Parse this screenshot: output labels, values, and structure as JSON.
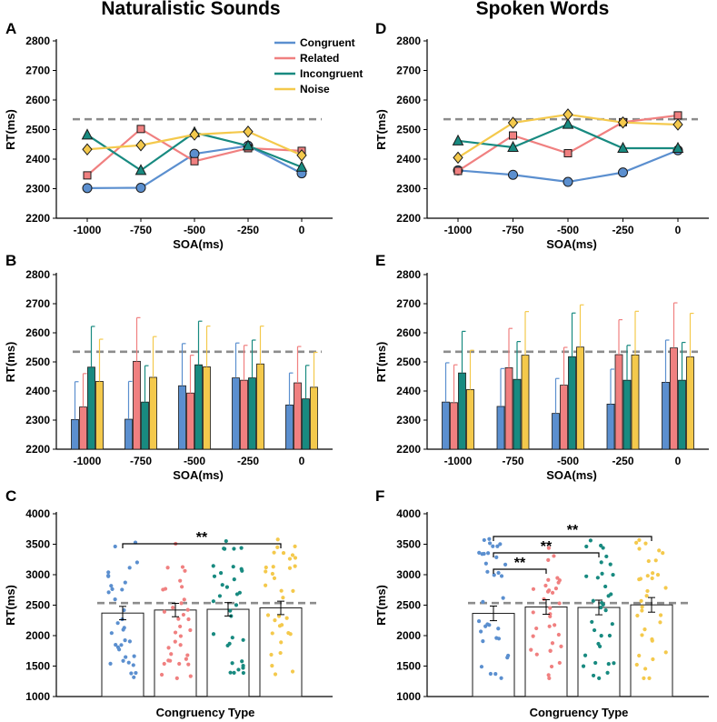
{
  "colors": {
    "congruent": "#5b8fcf",
    "related": "#f08080",
    "incongruent": "#188a80",
    "noise": "#f4c94c",
    "baseline": "#8c8c8c"
  },
  "markers": {
    "congruent": "circle",
    "related": "square",
    "incongruent": "triangle",
    "noise": "diamond"
  },
  "titles": {
    "left": "Naturalistic Sounds",
    "right": "Spoken Words"
  },
  "legend": [
    "Congruent",
    "Related",
    "Incongruent",
    "Noise"
  ],
  "chart_data": [
    {
      "panel": "A",
      "type": "line",
      "xlabel": "SOA(ms)",
      "ylabel": "RT(ms)",
      "categories": [
        "-1000",
        "-750",
        "-500",
        "-250",
        "0"
      ],
      "ylim": [
        2200,
        2800
      ],
      "yticks": [
        "2200",
        "2300",
        "2400",
        "2500",
        "2600",
        "2700",
        "2800"
      ],
      "baseline": 2535,
      "series": [
        {
          "name": "Congruent",
          "key": "congruent",
          "values": [
            2302,
            2303,
            2418,
            2445,
            2352
          ]
        },
        {
          "name": "Related",
          "key": "related",
          "values": [
            2345,
            2502,
            2393,
            2437,
            2428
          ]
        },
        {
          "name": "Incongruent",
          "key": "incongruent",
          "values": [
            2482,
            2362,
            2490,
            2445,
            2373
          ]
        },
        {
          "name": "Noise",
          "key": "noise",
          "values": [
            2433,
            2447,
            2483,
            2493,
            2413
          ]
        }
      ]
    },
    {
      "panel": "B",
      "type": "bar",
      "xlabel": "SOA(ms)",
      "ylabel": "RT(ms)",
      "categories": [
        "-1000",
        "-750",
        "-500",
        "-250",
        "0"
      ],
      "ylim": [
        2200,
        2800
      ],
      "yticks": [
        "2200",
        "2300",
        "2400",
        "2500",
        "2600",
        "2700",
        "2800"
      ],
      "baseline": 2535,
      "series": [
        {
          "name": "Congruent",
          "key": "congruent",
          "values": [
            2302,
            2303,
            2418,
            2445,
            2352
          ],
          "err": [
            130,
            130,
            145,
            120,
            110
          ]
        },
        {
          "name": "Related",
          "key": "related",
          "values": [
            2345,
            2502,
            2393,
            2437,
            2428
          ],
          "err": [
            115,
            150,
            130,
            120,
            125
          ]
        },
        {
          "name": "Incongruent",
          "key": "incongruent",
          "values": [
            2482,
            2362,
            2490,
            2445,
            2373
          ],
          "err": [
            140,
            125,
            150,
            130,
            115
          ]
        },
        {
          "name": "Noise",
          "key": "noise",
          "values": [
            2433,
            2447,
            2483,
            2493,
            2413
          ],
          "err": [
            145,
            140,
            140,
            130,
            120
          ]
        }
      ]
    },
    {
      "panel": "C",
      "type": "bar",
      "xlabel": "Congruency Type",
      "ylabel": "RT(ms)",
      "categories": [
        "Congruent",
        "Related",
        "Incongruent",
        "Noise"
      ],
      "ylim": [
        1000,
        4000
      ],
      "yticks": [
        "1000",
        "1500",
        "2000",
        "2500",
        "3000",
        "3500",
        "4000"
      ],
      "baseline": 2535,
      "values": [
        2370,
        2420,
        2432,
        2455
      ],
      "err": [
        110,
        110,
        110,
        110
      ],
      "significance": [
        {
          "from": 0,
          "to": 3,
          "label": "**"
        }
      ],
      "dot_seed": 11
    },
    {
      "panel": "D",
      "type": "line",
      "xlabel": "SOA(ms)",
      "ylabel": "RT(ms)",
      "categories": [
        "-1000",
        "-750",
        "-500",
        "-250",
        "0"
      ],
      "ylim": [
        2200,
        2800
      ],
      "yticks": [
        "2200",
        "2300",
        "2400",
        "2500",
        "2600",
        "2700",
        "2800"
      ],
      "baseline": 2535,
      "series": [
        {
          "name": "Congruent",
          "key": "congruent",
          "values": [
            2362,
            2347,
            2323,
            2355,
            2430
          ]
        },
        {
          "name": "Related",
          "key": "related",
          "values": [
            2360,
            2480,
            2420,
            2525,
            2548
          ]
        },
        {
          "name": "Incongruent",
          "key": "incongruent",
          "values": [
            2462,
            2440,
            2518,
            2437,
            2437
          ]
        },
        {
          "name": "Noise",
          "key": "noise",
          "values": [
            2405,
            2523,
            2551,
            2524,
            2517
          ]
        }
      ]
    },
    {
      "panel": "E",
      "type": "bar",
      "xlabel": "SOA(ms)",
      "ylabel": "RT(ms)",
      "categories": [
        "-1000",
        "-750",
        "-500",
        "-250",
        "0"
      ],
      "ylim": [
        2200,
        2800
      ],
      "yticks": [
        "2200",
        "2300",
        "2400",
        "2500",
        "2600",
        "2700",
        "2800"
      ],
      "baseline": 2535,
      "series": [
        {
          "name": "Congruent",
          "key": "congruent",
          "values": [
            2362,
            2347,
            2323,
            2355,
            2430
          ],
          "err": [
            135,
            130,
            120,
            120,
            145
          ]
        },
        {
          "name": "Related",
          "key": "related",
          "values": [
            2360,
            2480,
            2420,
            2525,
            2548
          ],
          "err": [
            130,
            135,
            130,
            120,
            155
          ]
        },
        {
          "name": "Incongruent",
          "key": "incongruent",
          "values": [
            2462,
            2440,
            2518,
            2437,
            2437
          ],
          "err": [
            143,
            130,
            150,
            120,
            130
          ]
        },
        {
          "name": "Noise",
          "key": "noise",
          "values": [
            2405,
            2523,
            2551,
            2524,
            2517
          ],
          "err": [
            135,
            150,
            145,
            150,
            150
          ]
        }
      ]
    },
    {
      "panel": "F",
      "type": "bar",
      "xlabel": "Congruency Type",
      "ylabel": "RT(ms)",
      "categories": [
        "Congruent",
        "Related",
        "Incongruent",
        "Noise"
      ],
      "ylim": [
        1000,
        4000
      ],
      "yticks": [
        "1000",
        "1500",
        "2000",
        "2500",
        "3000",
        "3500",
        "4000"
      ],
      "baseline": 2535,
      "values": [
        2365,
        2470,
        2462,
        2505
      ],
      "err": [
        120,
        120,
        120,
        120
      ],
      "significance": [
        {
          "from": 0,
          "to": 3,
          "label": "**"
        },
        {
          "from": 0,
          "to": 2,
          "label": "**"
        },
        {
          "from": 0,
          "to": 1,
          "label": "**"
        }
      ],
      "dot_seed": 29
    }
  ]
}
